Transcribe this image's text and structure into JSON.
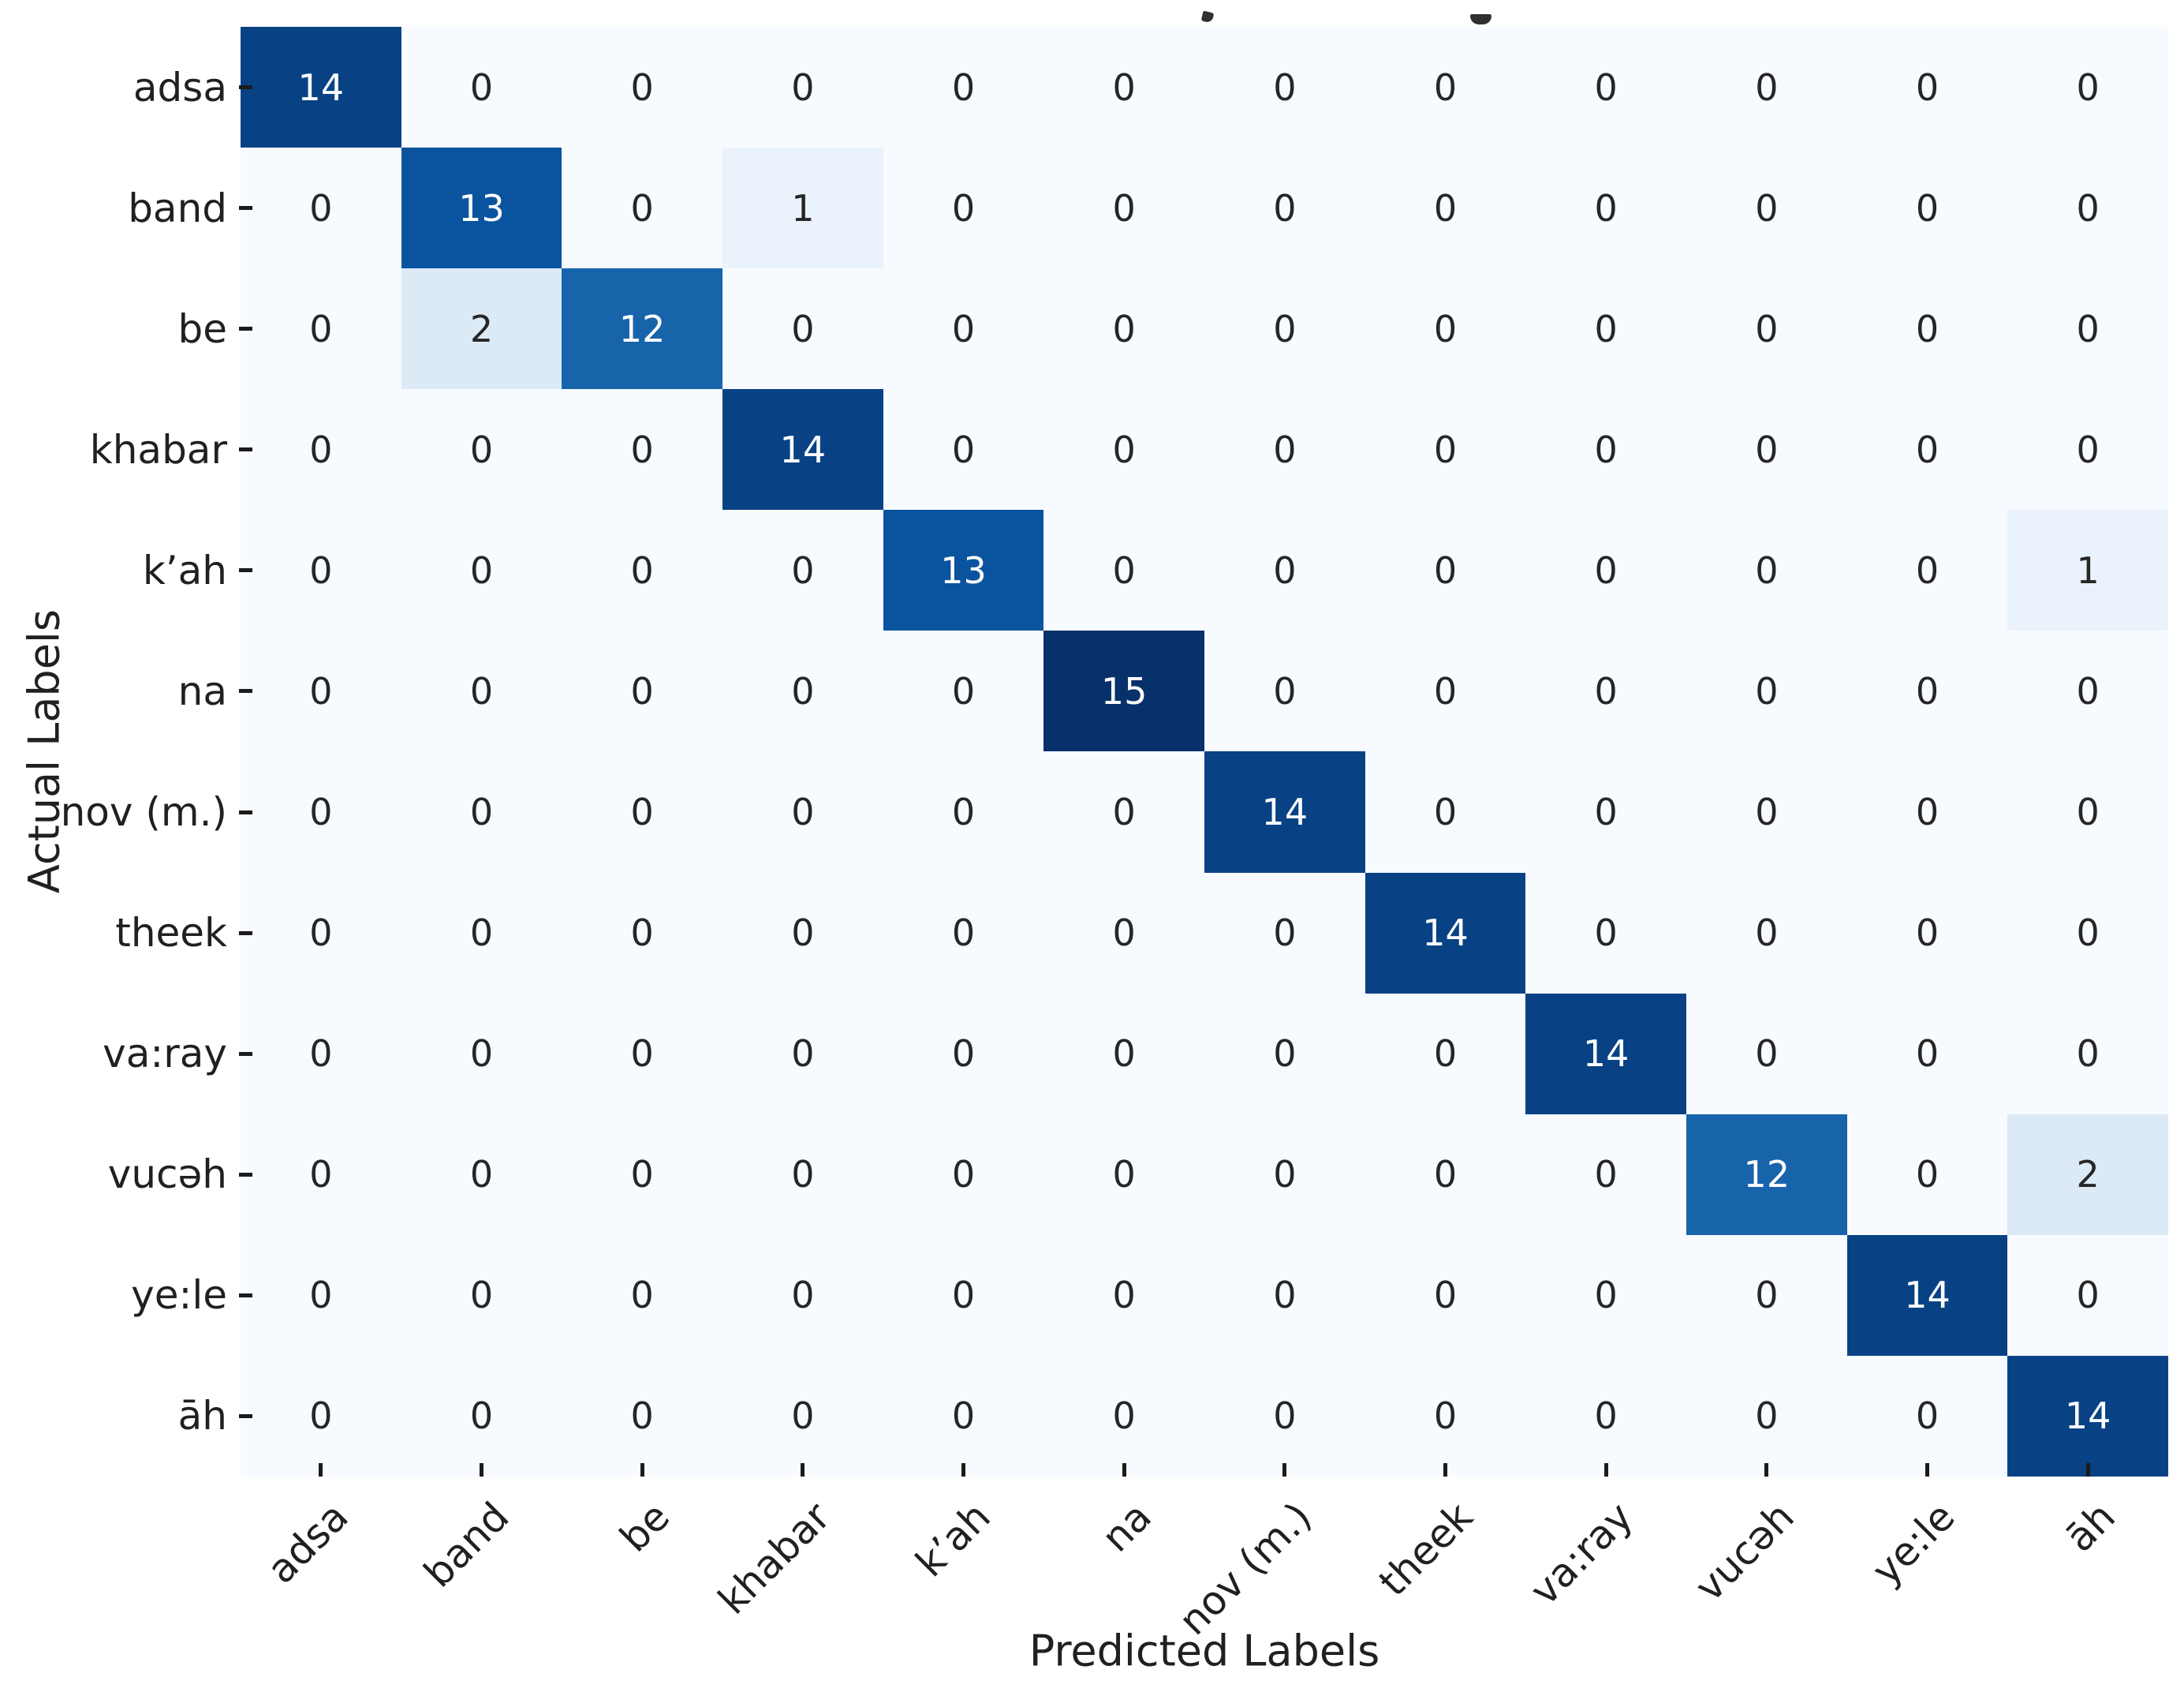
{
  "chart_data": {
    "type": "heatmap",
    "title": "",
    "xlabel": "Predicted Labels",
    "ylabel": "Actual Labels",
    "x_tick_labels": [
      "adsa",
      "band",
      "be",
      "khabar",
      "k’ah",
      "na",
      "nov (m.)",
      "theek",
      "va:ray",
      "vucəh",
      "ye:le",
      "āh"
    ],
    "y_tick_labels": [
      "adsa",
      "band",
      "be",
      "khabar",
      "k’ah",
      "na",
      "nov (m.)",
      "theek",
      "va:ray",
      "vucəh",
      "ye:le",
      "āh"
    ],
    "matrix": [
      [
        14,
        0,
        0,
        0,
        0,
        0,
        0,
        0,
        0,
        0,
        0,
        0
      ],
      [
        0,
        13,
        0,
        1,
        0,
        0,
        0,
        0,
        0,
        0,
        0,
        0
      ],
      [
        0,
        2,
        12,
        0,
        0,
        0,
        0,
        0,
        0,
        0,
        0,
        0
      ],
      [
        0,
        0,
        0,
        14,
        0,
        0,
        0,
        0,
        0,
        0,
        0,
        0
      ],
      [
        0,
        0,
        0,
        0,
        13,
        0,
        0,
        0,
        0,
        0,
        0,
        1
      ],
      [
        0,
        0,
        0,
        0,
        0,
        15,
        0,
        0,
        0,
        0,
        0,
        0
      ],
      [
        0,
        0,
        0,
        0,
        0,
        0,
        14,
        0,
        0,
        0,
        0,
        0
      ],
      [
        0,
        0,
        0,
        0,
        0,
        0,
        0,
        14,
        0,
        0,
        0,
        0
      ],
      [
        0,
        0,
        0,
        0,
        0,
        0,
        0,
        0,
        14,
        0,
        0,
        0
      ],
      [
        0,
        0,
        0,
        0,
        0,
        0,
        0,
        0,
        0,
        12,
        0,
        2
      ],
      [
        0,
        0,
        0,
        0,
        0,
        0,
        0,
        0,
        0,
        0,
        14,
        0
      ],
      [
        0,
        0,
        0,
        0,
        0,
        0,
        0,
        0,
        0,
        0,
        0,
        14
      ]
    ],
    "vmin": 0,
    "vmax": 15,
    "colorbar": false,
    "grid": false,
    "legend_position": "none",
    "annotations": true,
    "colormap": {
      "name": "Blues",
      "stops": [
        [
          0.0,
          "#f7fbff"
        ],
        [
          0.125,
          "#deebf7"
        ],
        [
          0.25,
          "#c6dbef"
        ],
        [
          0.375,
          "#9ecae1"
        ],
        [
          0.5,
          "#6baed6"
        ],
        [
          0.625,
          "#4292c6"
        ],
        [
          0.75,
          "#2171b5"
        ],
        [
          0.875,
          "#08519c"
        ],
        [
          1.0,
          "#08306b"
        ]
      ]
    },
    "annotation_text_dark": "#262626",
    "annotation_text_light": "#ffffff",
    "tick_color": "#1b1b1b",
    "axis_text_color": "#1f2023",
    "figure_background": "#ffffff"
  }
}
